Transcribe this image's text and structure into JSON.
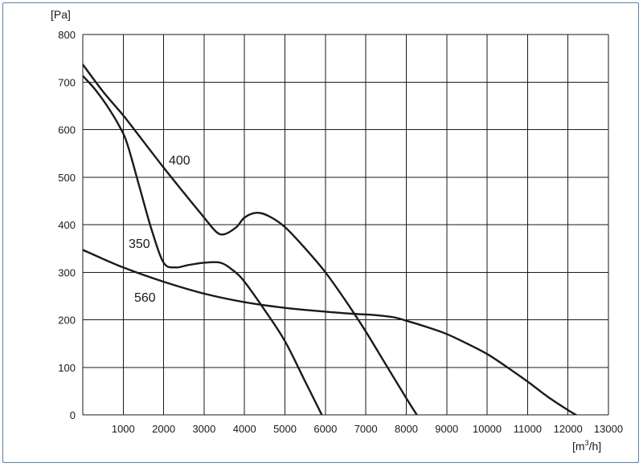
{
  "chart_data": {
    "type": "line",
    "ylabel": "[Pa]",
    "xlabel_base": "[m",
    "xlabel_sup": "3",
    "xlabel_end": "/h]",
    "xlim": [
      0,
      13000
    ],
    "ylim": [
      0,
      800
    ],
    "x_ticks": [
      1000,
      2000,
      3000,
      4000,
      5000,
      6000,
      7000,
      8000,
      9000,
      10000,
      11000,
      12000,
      13000
    ],
    "y_ticks": [
      0,
      100,
      200,
      300,
      400,
      500,
      600,
      700,
      800
    ],
    "grid": true,
    "series": [
      {
        "name": "400",
        "x": [
          0,
          500,
          1000,
          1500,
          2000,
          2500,
          3000,
          3300,
          3500,
          3800,
          4000,
          4300,
          4600,
          5000,
          5500,
          6000,
          6500,
          7000,
          7500,
          8000,
          8300,
          8400
        ],
        "y": [
          737,
          680,
          630,
          575,
          520,
          467,
          415,
          385,
          380,
          395,
          415,
          425,
          418,
          395,
          350,
          300,
          240,
          175,
          105,
          35,
          -5,
          -15
        ]
      },
      {
        "name": "350",
        "x": [
          0,
          300,
          600,
          900,
          1100,
          1400,
          1700,
          2000,
          2300,
          2600,
          3000,
          3400,
          3700,
          4000,
          4500,
          5000,
          5500,
          6000
        ],
        "y": [
          713,
          685,
          650,
          608,
          570,
          480,
          390,
          320,
          310,
          315,
          320,
          320,
          305,
          280,
          220,
          155,
          70,
          -15
        ]
      },
      {
        "name": "560",
        "x": [
          0,
          1000,
          2000,
          3000,
          4000,
          5000,
          6000,
          6800,
          7200,
          7700,
          8000,
          8500,
          9000,
          9500,
          10000,
          10500,
          11000,
          11500,
          12000,
          12400
        ],
        "y": [
          347,
          310,
          280,
          255,
          237,
          225,
          217,
          212,
          210,
          205,
          198,
          185,
          170,
          150,
          128,
          100,
          70,
          38,
          10,
          -10
        ]
      }
    ]
  }
}
